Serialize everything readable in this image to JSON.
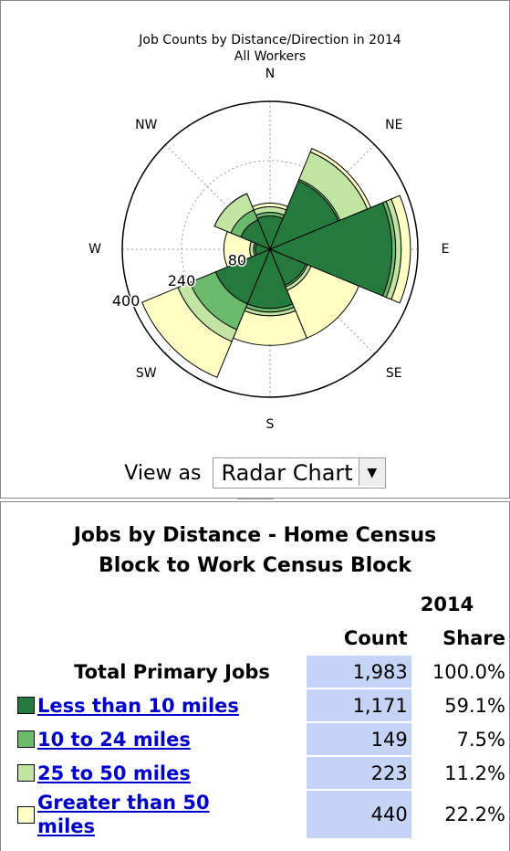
{
  "chart_data": {
    "type": "radar",
    "title": "Job Counts by Distance/Direction in 2014",
    "subtitle": "All Workers",
    "directions": [
      "N",
      "NE",
      "E",
      "SE",
      "S",
      "SW",
      "W",
      "NW"
    ],
    "series": [
      {
        "name": "Less than 10 miles",
        "color": "#237a3c",
        "values": [
          90,
          200,
          330,
          105,
          160,
          160,
          40,
          86
        ]
      },
      {
        "name": "10 to 24 miles",
        "color": "#6cbb6c",
        "values": [
          10,
          5,
          10,
          5,
          10,
          75,
          5,
          29
        ]
      },
      {
        "name": "25 to 50 miles",
        "color": "#c2e4a3",
        "values": [
          15,
          80,
          15,
          10,
          10,
          35,
          10,
          48
        ]
      },
      {
        "name": "Greater than 50 miles",
        "color": "#ffffc4",
        "values": [
          10,
          10,
          25,
          140,
          80,
          105,
          70,
          0
        ]
      }
    ],
    "rlim": [
      0,
      400
    ],
    "rticks": [
      80,
      240,
      400
    ]
  },
  "view_as": {
    "label": "View as",
    "selected": "Radar Chart"
  },
  "table": {
    "title": "Jobs by Distance - Home Census Block to Work Census Block",
    "year": "2014",
    "headers": [
      "Count",
      "Share"
    ],
    "rows": [
      {
        "label": "Total Primary Jobs",
        "count": "1,983",
        "share": "100.0%"
      },
      {
        "count": "1,171",
        "share": "59.1%"
      },
      {
        "count": "149",
        "share": "7.5%"
      },
      {
        "count": "223",
        "share": "11.2%"
      },
      {
        "count": "440",
        "share": "22.2%"
      }
    ]
  }
}
